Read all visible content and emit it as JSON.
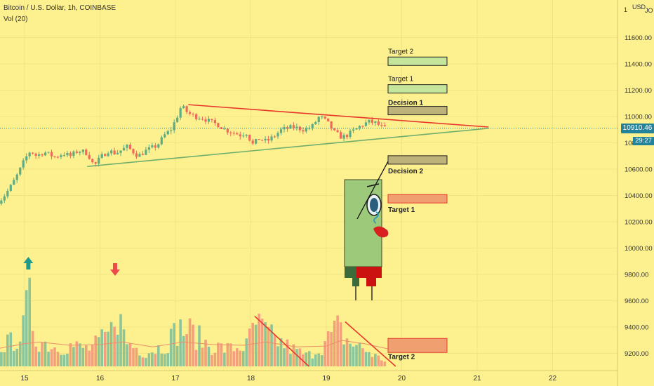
{
  "header": {
    "symbol_line": "Bitcoin / U.S. Dollar, 1h, COINBASE",
    "indicator_line": "Vol (20)"
  },
  "axis": {
    "currency": "USD",
    "currency_suffix": "JO",
    "corner_left": "1",
    "current_price": "10910.46",
    "countdown": "29:27"
  },
  "colors": {
    "background": "#fdf08f",
    "up": "#5eac84",
    "down": "#ee6a5a",
    "vol_up": "#8cc59a",
    "vol_down": "#f3a07c",
    "trend_upper": "#e8372c",
    "trend_lower": "#6fae6c",
    "badge": "#23839a"
  },
  "chart_data": {
    "type": "candlestick",
    "price_ylim": [
      9100,
      11900
    ],
    "y_ticks": [
      "11600.00",
      "11400.00",
      "11200.00",
      "11000.00",
      "10800.00",
      "10600.00",
      "10400.00",
      "10200.00",
      "10000.00",
      "9800.00",
      "9600.00",
      "9400.00",
      "9200.00"
    ],
    "y_tick_values": [
      11600,
      11400,
      11200,
      11000,
      10800,
      10600,
      10400,
      10200,
      10000,
      9800,
      9600,
      9400,
      9200
    ],
    "x_ticks": [
      "15",
      "16",
      "17",
      "18",
      "19",
      "20",
      "21",
      "22"
    ],
    "x_tick_days": [
      15,
      16,
      17,
      18,
      19,
      20,
      21,
      22
    ],
    "current_price": 10910.46,
    "price_path": [
      [
        14.65,
        10340
      ],
      [
        14.75,
        10380
      ],
      [
        14.85,
        10460
      ],
      [
        14.95,
        10560
      ],
      [
        15.05,
        10680
      ],
      [
        15.12,
        10740
      ],
      [
        15.2,
        10700
      ],
      [
        15.3,
        10730
      ],
      [
        15.45,
        10690
      ],
      [
        15.55,
        10720
      ],
      [
        15.65,
        10700
      ],
      [
        15.75,
        10740
      ],
      [
        15.85,
        10730
      ],
      [
        15.92,
        10680
      ],
      [
        15.96,
        10620
      ],
      [
        16.05,
        10690
      ],
      [
        16.15,
        10740
      ],
      [
        16.25,
        10720
      ],
      [
        16.4,
        10770
      ],
      [
        16.55,
        10700
      ],
      [
        16.65,
        10740
      ],
      [
        16.8,
        10780
      ],
      [
        16.9,
        10860
      ],
      [
        16.98,
        10900
      ],
      [
        17.05,
        10980
      ],
      [
        17.12,
        11080
      ],
      [
        17.2,
        11030
      ],
      [
        17.3,
        11000
      ],
      [
        17.4,
        10990
      ],
      [
        17.5,
        10960
      ],
      [
        17.6,
        10940
      ],
      [
        17.7,
        10900
      ],
      [
        17.8,
        10880
      ],
      [
        17.9,
        10860
      ],
      [
        18.0,
        10880
      ],
      [
        18.05,
        10780
      ],
      [
        18.15,
        10830
      ],
      [
        18.25,
        10810
      ],
      [
        18.35,
        10850
      ],
      [
        18.45,
        10900
      ],
      [
        18.6,
        10920
      ],
      [
        18.75,
        10900
      ],
      [
        18.85,
        10920
      ],
      [
        18.95,
        11000
      ],
      [
        19.05,
        10960
      ],
      [
        19.15,
        10880
      ],
      [
        19.25,
        10840
      ],
      [
        19.35,
        10870
      ],
      [
        19.5,
        10930
      ],
      [
        19.6,
        10960
      ],
      [
        19.7,
        10950
      ],
      [
        19.8,
        10910
      ]
    ],
    "volume_path": [
      [
        14.65,
        0.3
      ],
      [
        14.8,
        0.33
      ],
      [
        14.98,
        0.5
      ],
      [
        15.05,
        1.0
      ],
      [
        15.15,
        0.4
      ],
      [
        15.4,
        0.28
      ],
      [
        15.6,
        0.3
      ],
      [
        15.85,
        0.25
      ],
      [
        16.0,
        0.35
      ],
      [
        16.15,
        0.5
      ],
      [
        16.2,
        0.9
      ],
      [
        16.35,
        0.35
      ],
      [
        16.6,
        0.2
      ],
      [
        16.85,
        0.3
      ],
      [
        17.05,
        0.55
      ],
      [
        17.2,
        0.5
      ],
      [
        17.45,
        0.3
      ],
      [
        17.7,
        0.25
      ],
      [
        17.95,
        0.3
      ],
      [
        18.05,
        0.62
      ],
      [
        18.3,
        0.4
      ],
      [
        18.55,
        0.25
      ],
      [
        18.75,
        0.15
      ],
      [
        18.95,
        0.3
      ],
      [
        19.15,
        0.55
      ],
      [
        19.3,
        0.35
      ],
      [
        19.5,
        0.25
      ],
      [
        19.7,
        0.12
      ],
      [
        19.8,
        0.08
      ]
    ],
    "volume_average_path": [
      [
        14.65,
        0.22
      ],
      [
        15.0,
        0.28
      ],
      [
        15.2,
        0.3
      ],
      [
        15.6,
        0.26
      ],
      [
        16.0,
        0.27
      ],
      [
        16.3,
        0.3
      ],
      [
        16.7,
        0.24
      ],
      [
        17.1,
        0.3
      ],
      [
        17.5,
        0.27
      ],
      [
        17.9,
        0.26
      ],
      [
        18.2,
        0.3
      ],
      [
        18.6,
        0.24
      ],
      [
        19.0,
        0.25
      ],
      [
        19.2,
        0.32
      ],
      [
        19.5,
        0.28
      ],
      [
        19.8,
        0.22
      ],
      [
        19.9,
        0.2
      ]
    ],
    "volume_ylim": [
      0,
      1.1
    ],
    "trendlines": [
      {
        "role": "upper",
        "from": [
          17.17,
          11090
        ],
        "to": [
          21.15,
          10920
        ]
      },
      {
        "role": "lower",
        "from": [
          15.83,
          10620
        ],
        "to": [
          21.15,
          10910
        ]
      },
      {
        "role": "volume-decline-1",
        "from": [
          18.05,
          0.62
        ],
        "to": [
          18.77,
          0.0
        ]
      },
      {
        "role": "volume-decline-2",
        "from": [
          19.25,
          0.55
        ],
        "to": [
          19.92,
          0.0
        ]
      }
    ],
    "markers": [
      {
        "type": "arrow-up",
        "day": 15.05
      },
      {
        "type": "arrow-down",
        "day": 16.2
      }
    ],
    "levels": [
      {
        "label": "Target 2",
        "price": 11420,
        "color": "#c5e59a"
      },
      {
        "label": "Target 1",
        "price": 11210,
        "color": "#c5e59a"
      },
      {
        "label": "Decision 1",
        "price": 11045,
        "color": "#bdb37a"
      },
      {
        "label": "Decision 2",
        "price": 10670,
        "color": "#bdb37a"
      },
      {
        "label": "Target 1",
        "price": 10375,
        "color": "#f0a070"
      },
      {
        "label": "Target 2",
        "price": 9260,
        "color": "#f0a070"
      }
    ]
  }
}
